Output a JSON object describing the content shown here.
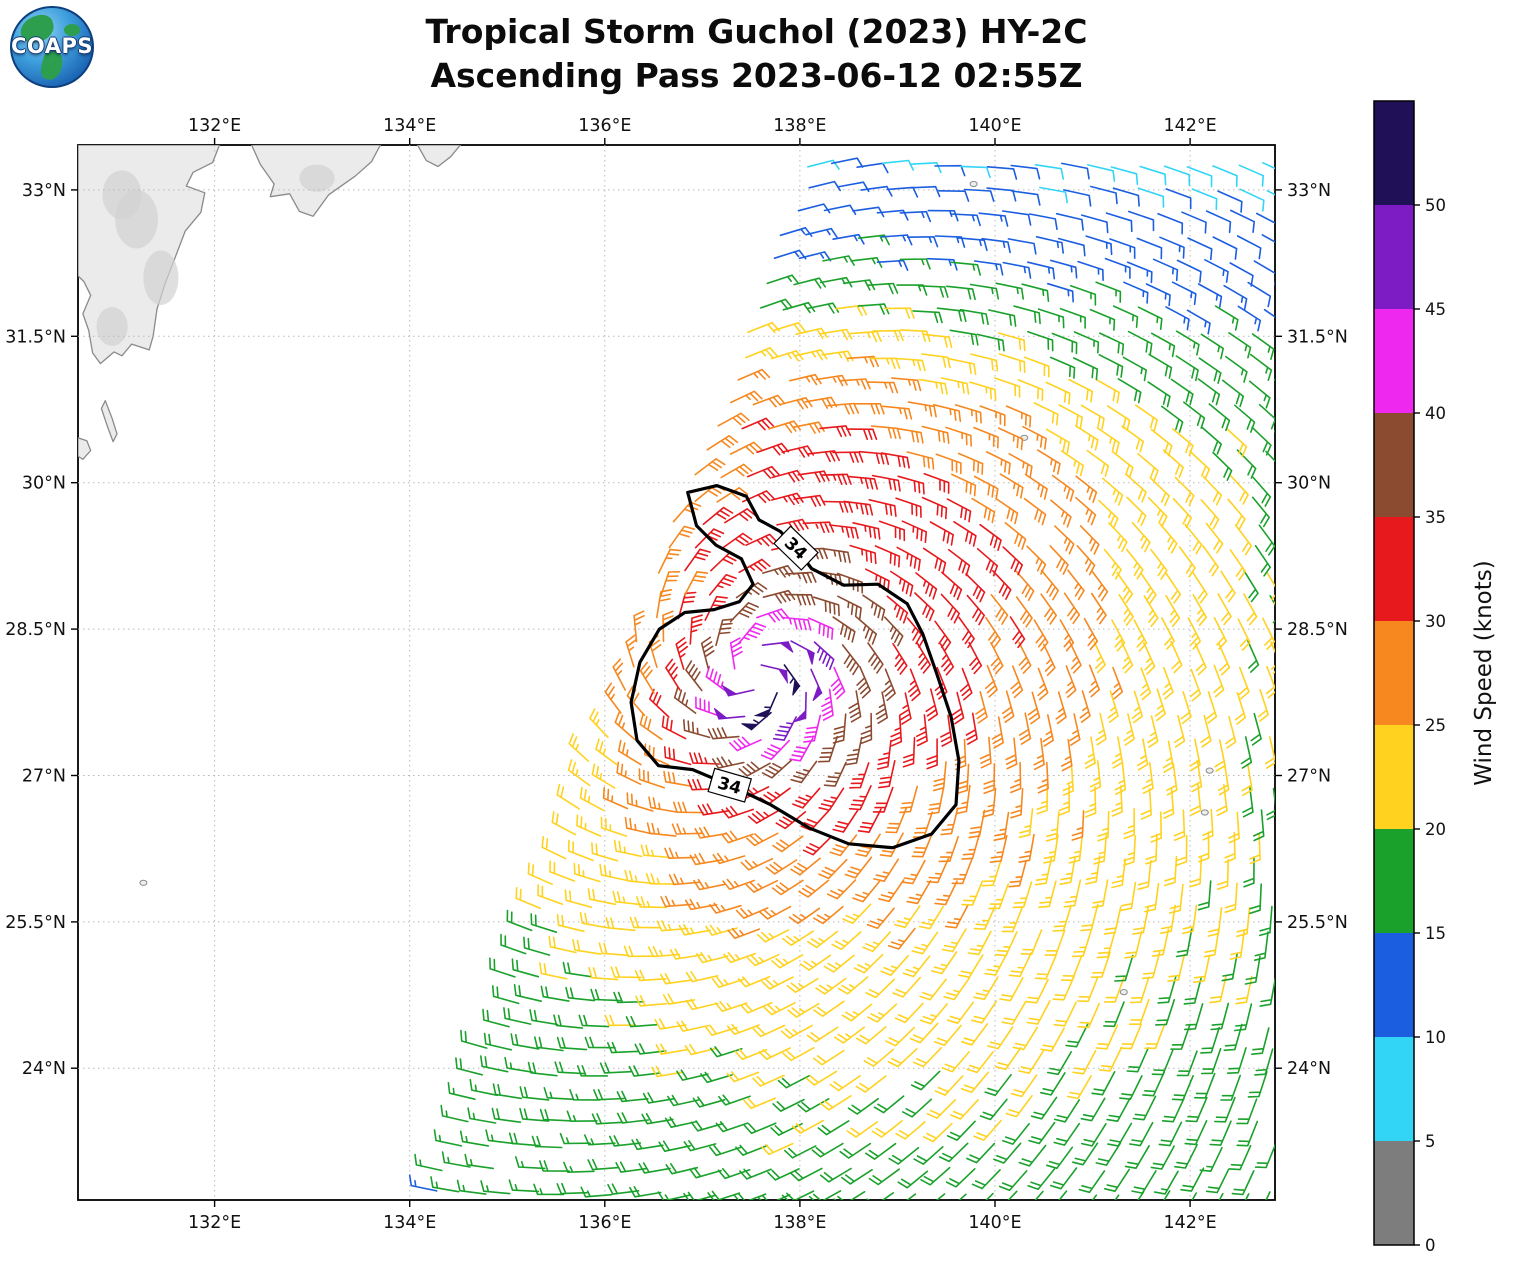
{
  "logo": {
    "text": "COAPS"
  },
  "title": {
    "line1": "Tropical Storm Guchol (2023) HY-2C",
    "line2": "Ascending Pass 2023-06-12 02:55Z"
  },
  "chart_data": {
    "type": "wind_barb_map",
    "title": "Tropical Storm Guchol (2023) HY-2C",
    "subtitle": "Ascending Pass 2023-06-12 02:55Z",
    "satellite": "HY-2C",
    "pass_type": "Ascending",
    "pass_time": "2023-06-12 02:55Z",
    "extent": {
      "lon_min": 130.6,
      "lon_max": 142.87,
      "lat_min": 22.65,
      "lat_max": 33.46
    },
    "lon_ticks": {
      "values": [
        132,
        134,
        136,
        138,
        140,
        142
      ],
      "labels": [
        "132°E",
        "134°E",
        "136°E",
        "138°E",
        "140°E",
        "142°E"
      ]
    },
    "lat_ticks": {
      "values": [
        33,
        31.5,
        30,
        28.5,
        27,
        25.5,
        24
      ],
      "labels": [
        "33°N",
        "31.5°N",
        "30°N",
        "28.5°N",
        "27°N",
        "25.5°N",
        "24°N"
      ]
    },
    "grid": {
      "style": "dotted",
      "color": "#b9b9b9"
    },
    "colorbar": {
      "label": "Wind Speed (knots)",
      "tick_values": [
        0,
        5,
        10,
        15,
        20,
        25,
        30,
        35,
        40,
        45,
        50
      ],
      "levels": [
        [
          0,
          "#7d7d7d"
        ],
        [
          5,
          "#33d5f6"
        ],
        [
          10,
          "#1b5ee0"
        ],
        [
          15,
          "#1aa12b"
        ],
        [
          20,
          "#ffd21f"
        ],
        [
          25,
          "#f6881f"
        ],
        [
          30,
          "#e7191d"
        ],
        [
          35,
          "#8b4b31"
        ],
        [
          40,
          "#ee28ee"
        ],
        [
          45,
          "#7d1bc4"
        ],
        [
          50,
          "#201058"
        ]
      ]
    },
    "storm_center": {
      "lon": 137.55,
      "lat": 28.05
    },
    "max_wind_kt": 50,
    "wind_barbs": {
      "grid_spacing_deg": 0.26,
      "barb_increments": {
        "half_kt": 5,
        "full_kt": 10,
        "pennant_kt": 50
      },
      "swath": {
        "left_edge": {
          "lon_at_lat_min": 134.3,
          "dlon_dlat": 0.36
        },
        "right_edge_lon": 142.87
      }
    },
    "contour_34kt": {
      "value_kt": 34,
      "label": "34",
      "polygon_lonlat": [
        [
          136.85,
          29.9
        ],
        [
          137.15,
          29.97
        ],
        [
          137.45,
          29.86
        ],
        [
          137.58,
          29.62
        ],
        [
          137.8,
          29.5
        ],
        [
          137.96,
          29.33
        ],
        [
          138.12,
          29.12
        ],
        [
          138.45,
          28.95
        ],
        [
          138.8,
          28.96
        ],
        [
          139.1,
          28.76
        ],
        [
          139.26,
          28.45
        ],
        [
          139.4,
          28.05
        ],
        [
          139.55,
          27.6
        ],
        [
          139.63,
          27.15
        ],
        [
          139.6,
          26.7
        ],
        [
          139.35,
          26.4
        ],
        [
          138.95,
          26.26
        ],
        [
          138.5,
          26.3
        ],
        [
          138.1,
          26.46
        ],
        [
          137.7,
          26.7
        ],
        [
          137.28,
          26.9
        ],
        [
          136.9,
          27.06
        ],
        [
          136.55,
          27.1
        ],
        [
          136.33,
          27.36
        ],
        [
          136.27,
          27.75
        ],
        [
          136.36,
          28.16
        ],
        [
          136.56,
          28.5
        ],
        [
          136.82,
          28.67
        ],
        [
          137.12,
          28.7
        ],
        [
          137.38,
          28.78
        ],
        [
          137.52,
          28.96
        ],
        [
          137.4,
          29.22
        ],
        [
          137.14,
          29.36
        ],
        [
          136.94,
          29.56
        ]
      ],
      "labels": [
        {
          "lon": 137.96,
          "lat": 29.33,
          "rotation_deg": 44
        },
        {
          "lon": 137.28,
          "lat": 26.9,
          "rotation_deg": 16
        }
      ]
    },
    "coastline": {
      "land_color": "#ebebeb",
      "relief_color": "#d2d2d2",
      "line_color": "#8a8a8a",
      "polygons": [
        {
          "name": "kyushu",
          "pts": [
            [
              130.6,
              33.46
            ],
            [
              132.05,
              33.46
            ],
            [
              131.98,
              33.28
            ],
            [
              131.78,
              33.18
            ],
            [
              131.71,
              33.04
            ],
            [
              131.9,
              32.97
            ],
            [
              131.86,
              32.77
            ],
            [
              131.7,
              32.58
            ],
            [
              131.6,
              32.32
            ],
            [
              131.5,
              32.06
            ],
            [
              131.41,
              31.78
            ],
            [
              131.37,
              31.5
            ],
            [
              131.33,
              31.36
            ],
            [
              131.15,
              31.42
            ],
            [
              131.05,
              31.3
            ],
            [
              130.97,
              31.34
            ],
            [
              130.83,
              31.22
            ],
            [
              130.75,
              31.33
            ],
            [
              130.71,
              31.56
            ],
            [
              130.65,
              31.73
            ],
            [
              130.73,
              31.92
            ],
            [
              130.66,
              32.06
            ],
            [
              130.6,
              32.12
            ]
          ]
        },
        {
          "name": "shikoku",
          "pts": [
            [
              132.38,
              33.46
            ],
            [
              132.47,
              33.26
            ],
            [
              132.61,
              33.06
            ],
            [
              132.57,
              32.93
            ],
            [
              132.77,
              32.96
            ],
            [
              132.87,
              32.78
            ],
            [
              133.01,
              32.73
            ],
            [
              133.17,
              32.95
            ],
            [
              133.44,
              33.14
            ],
            [
              133.61,
              33.29
            ],
            [
              133.7,
              33.46
            ]
          ]
        },
        {
          "name": "honshu-cape",
          "pts": [
            [
              134.08,
              33.46
            ],
            [
              134.17,
              33.3
            ],
            [
              134.29,
              33.24
            ],
            [
              134.42,
              33.34
            ],
            [
              134.52,
              33.46
            ]
          ]
        },
        {
          "name": "tanegashima",
          "pts": [
            [
              130.88,
              30.84
            ],
            [
              130.95,
              30.66
            ],
            [
              131.0,
              30.5
            ],
            [
              130.96,
              30.42
            ],
            [
              130.9,
              30.58
            ],
            [
              130.84,
              30.76
            ]
          ]
        },
        {
          "name": "yakushima",
          "pts": [
            [
              130.6,
              30.46
            ],
            [
              130.69,
              30.43
            ],
            [
              130.73,
              30.33
            ],
            [
              130.65,
              30.24
            ],
            [
              130.6,
              30.27
            ]
          ]
        }
      ],
      "relief": [
        {
          "lon": 131.2,
          "lat": 32.7,
          "rx": 0.22,
          "ry": 0.3
        },
        {
          "lon": 131.45,
          "lat": 32.1,
          "rx": 0.18,
          "ry": 0.28
        },
        {
          "lon": 130.95,
          "lat": 31.6,
          "rx": 0.16,
          "ry": 0.2
        },
        {
          "lon": 131.05,
          "lat": 32.95,
          "rx": 0.2,
          "ry": 0.25
        },
        {
          "lon": 133.05,
          "lat": 33.12,
          "rx": 0.18,
          "ry": 0.14
        }
      ],
      "islands": [
        {
          "lon": 131.27,
          "lat": 25.9
        },
        {
          "lon": 139.78,
          "lat": 33.06
        },
        {
          "lon": 140.3,
          "lat": 30.46
        },
        {
          "lon": 142.2,
          "lat": 27.05
        },
        {
          "lon": 142.15,
          "lat": 26.62
        },
        {
          "lon": 141.32,
          "lat": 24.78
        }
      ]
    },
    "wind_model": {
      "vmax_kt": 48.3,
      "vscale_kt": 47,
      "r_core_deg": 0.45,
      "decay_exp": 0.4,
      "inflow_deg": 20,
      "asym_amp": 0.15,
      "asym_dir_deg": -20,
      "lobes": [
        {
          "amp": 5.0,
          "az_deg": 55,
          "az_width": 60,
          "r": 2.7,
          "r_width": 1.7
        },
        {
          "amp": 4.5,
          "az_deg": 95,
          "az_width": 40,
          "r": 2.2,
          "r_width": 1.2
        }
      ],
      "north_falloff": {
        "lat_start": 30.6,
        "kt_per_deg": 2.9
      },
      "noise_kt": 2.2,
      "min_kt": 5.5,
      "seed": 1234
    }
  }
}
